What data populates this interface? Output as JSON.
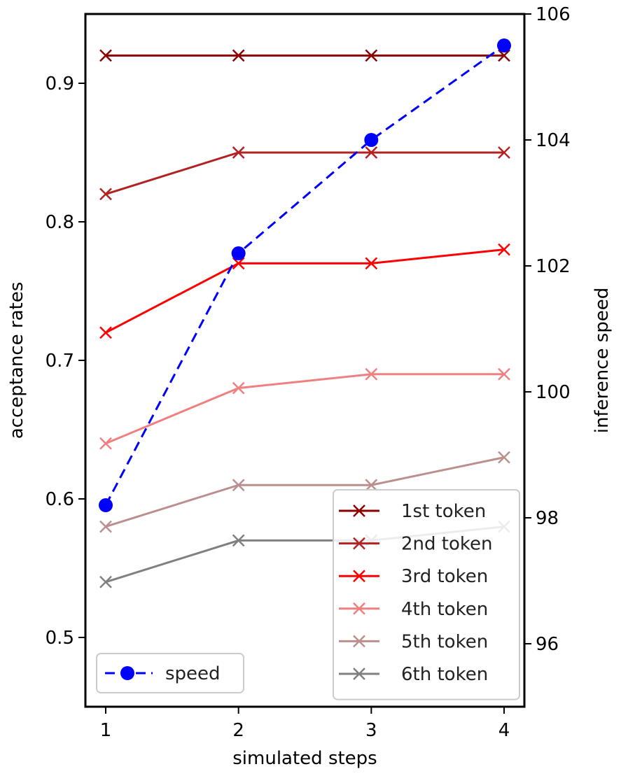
{
  "chart_data": {
    "type": "line",
    "x": [
      1,
      2,
      3,
      4
    ],
    "xticks": [
      "1",
      "2",
      "3",
      "4"
    ],
    "xlabel": "simulated steps",
    "ylabel_left": "acceptance rates",
    "ylabel_right": "inference speed",
    "ylim_left": [
      0.45,
      0.95
    ],
    "yticks_left": [
      "0.5",
      "0.6",
      "0.7",
      "0.8",
      "0.9"
    ],
    "ylim_right": [
      95.0,
      106.0
    ],
    "yticks_right": [
      "96",
      "98",
      "100",
      "102",
      "104",
      "106"
    ],
    "grid": false,
    "series": [
      {
        "name": "1st token",
        "axis": "left",
        "color": "#8b0000",
        "marker": "x",
        "values": [
          0.92,
          0.92,
          0.92,
          0.92
        ]
      },
      {
        "name": "2nd token",
        "axis": "left",
        "color": "#b22222",
        "marker": "x",
        "values": [
          0.82,
          0.85,
          0.85,
          0.85
        ]
      },
      {
        "name": "3rd token",
        "axis": "left",
        "color": "#ff0000",
        "marker": "x",
        "values": [
          0.72,
          0.77,
          0.77,
          0.78
        ]
      },
      {
        "name": "4th token",
        "axis": "left",
        "color": "#f08080",
        "marker": "x",
        "values": [
          0.64,
          0.68,
          0.69,
          0.69
        ]
      },
      {
        "name": "5th token",
        "axis": "left",
        "color": "#bc8f8f",
        "marker": "x",
        "values": [
          0.58,
          0.61,
          0.61,
          0.63
        ]
      },
      {
        "name": "6th token",
        "axis": "left",
        "color": "#808080",
        "marker": "x",
        "values": [
          0.54,
          0.57,
          0.57,
          0.58
        ]
      },
      {
        "name": "speed",
        "axis": "right",
        "color": "#0000ff",
        "marker": "o",
        "dashed": true,
        "values": [
          98.2,
          102.2,
          104.0,
          105.5
        ]
      }
    ],
    "legend_main": {
      "placement": "lower-right",
      "entries": [
        "1st token",
        "2nd token",
        "3rd token",
        "4th token",
        "5th token",
        "6th token"
      ]
    },
    "legend_speed": {
      "placement": "lower-left",
      "entries": [
        "speed"
      ]
    }
  }
}
